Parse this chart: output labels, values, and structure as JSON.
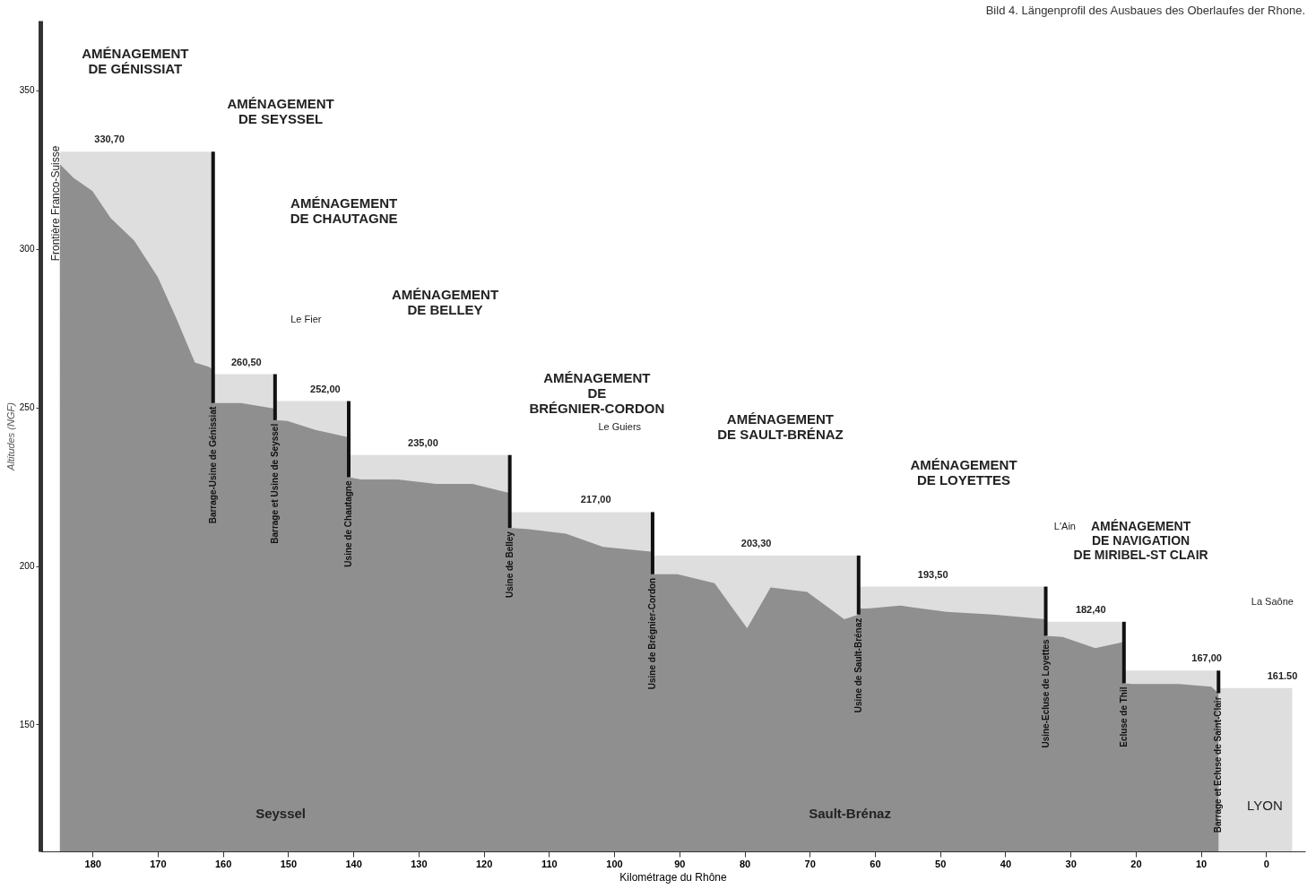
{
  "chart_data": {
    "type": "area",
    "title": "Bild 4. Längenprofil des Ausbaues des Oberlaufes der Rhone.",
    "xlabel": "Kilométrage du Rhône",
    "ylabel": "Altitudes (NGF)",
    "xlim": [
      188,
      -6
    ],
    "xticks": [
      180,
      170,
      160,
      150,
      140,
      130,
      120,
      110,
      100,
      90,
      80,
      70,
      60,
      50,
      40,
      30,
      20,
      10,
      0
    ],
    "ylim": [
      110,
      372
    ],
    "yticks": [
      150,
      200,
      250,
      300,
      350
    ],
    "grid": false,
    "series": [
      {
        "color": "#dedede",
        "x": [
          185,
          161.5,
          161.5,
          152,
          152,
          140.7,
          140.7,
          116,
          116,
          94.1,
          94.1,
          62.5,
          62.5,
          33.8,
          33.8,
          21.8,
          21.8,
          7.3,
          7.3,
          -4
        ],
        "values": [
          330.7,
          330.7,
          260.5,
          260.5,
          252,
          252,
          235,
          235,
          217,
          217,
          203.3,
          203.3,
          193.5,
          193.5,
          182.4,
          182.4,
          167,
          167,
          161.5,
          161.5
        ]
      },
      {
        "color": "#8f8f8f",
        "x": [
          185,
          182.9,
          180,
          177.2,
          173.6,
          170,
          167.2,
          164.3,
          162.2,
          161.5,
          161.5,
          157.2,
          152,
          152,
          150.1,
          145.8,
          140.7,
          140.7,
          138.8,
          133.2,
          127.3,
          121.7,
          116,
          116,
          113.1,
          107.4,
          101.7,
          94.1,
          94.1,
          90.3,
          84.6,
          79.6,
          76,
          70.4,
          64.7,
          62.5,
          62.5,
          61.1,
          56.1,
          49,
          41.9,
          33.8,
          33.8,
          31.2,
          26.2,
          21.8,
          21.8,
          20.5,
          13.4,
          8.4,
          7.3
        ],
        "values": [
          326.7,
          322.4,
          318.2,
          309.7,
          302.6,
          291.2,
          278.4,
          264.2,
          262.8,
          262,
          251.4,
          251.4,
          249.6,
          246,
          245.7,
          242.9,
          240.6,
          228,
          227.3,
          227.3,
          225.9,
          225.9,
          223,
          212,
          211.6,
          210.2,
          206,
          204.5,
          197.4,
          197.4,
          194.6,
          180.4,
          193.2,
          191.8,
          183.2,
          184.7,
          186.6,
          186.6,
          187.5,
          185.5,
          184.7,
          183.2,
          178,
          177.6,
          174.1,
          176.1,
          163,
          162.8,
          162.8,
          161.9,
          159.9
        ]
      }
    ],
    "ref_lines": [
      {
        "axis": "x",
        "value": 161.5,
        "label": "Barrage-Usine de Génissiat",
        "color": "#111111"
      },
      {
        "axis": "x",
        "value": 152,
        "label": "Barrage et Usine de Seyssel",
        "color": "#111111"
      },
      {
        "axis": "x",
        "value": 140.7,
        "label": "Usine de Chautagne",
        "color": "#111111"
      },
      {
        "axis": "x",
        "value": 116,
        "label": "Usine de Belley",
        "color": "#111111"
      },
      {
        "axis": "x",
        "value": 94.1,
        "label": "Usine de Brégnier-Cordon",
        "color": "#111111"
      },
      {
        "axis": "x",
        "value": 62.5,
        "label": "Usine de Sault-Brénaz",
        "color": "#111111"
      },
      {
        "axis": "x",
        "value": 33.8,
        "label": "Usine-Ecluse de Loyettes",
        "color": "#111111"
      },
      {
        "axis": "x",
        "value": 21.8,
        "label": "Ecluse de Thil",
        "color": "#111111"
      },
      {
        "axis": "x",
        "value": 7.3,
        "label": "Barrage et Ecluse de Saint-Clair",
        "color": "#111111"
      }
    ],
    "annotations": [
      "AMÉNAGEMENT\nDE GÉNISSIAT",
      "AMÉNAGEMENT\nDE SEYSSEL",
      "AMÉNAGEMENT\nDE CHAUTAGNE",
      "AMÉNAGEMENT\nDE BELLEY",
      "AMÉNAGEMENT\nDE\nBRÉGNIER-CORDON",
      "AMÉNAGEMENT\nDE SAULT-BRÉNAZ",
      "AMÉNAGEMENT\nDE LOYETTES",
      "AMÉNAGEMENT\nDE NAVIGATION\nDE MIRIBEL-ST CLAIR",
      {
        "text": "330,70",
        "x": 177.4,
        "y": 330.7
      },
      {
        "text": "260,50",
        "x": 156.4,
        "y": 260.5
      },
      {
        "text": "252,00",
        "x": 144.3,
        "y": 252
      },
      {
        "text": "235,00",
        "x": 129.3,
        "y": 235
      },
      {
        "text": "217,00",
        "x": 102.8,
        "y": 217
      },
      {
        "text": "203,30",
        "x": 78.2,
        "y": 203.3
      },
      {
        "text": "193,50",
        "x": 51.1,
        "y": 193.5
      },
      {
        "text": "182,40",
        "x": 26.9,
        "y": 182.4
      },
      {
        "text": "167,00",
        "x": 9.1,
        "y": 167
      },
      {
        "text": "161.50",
        "x": -2.5,
        "y": 161.5
      },
      "Frontière Franco-Suisse",
      "Le Fier",
      "Le Guiers",
      "L'Ain",
      "La Saône",
      "Seyssel",
      "Sault-Brénaz",
      "LYON"
    ]
  }
}
